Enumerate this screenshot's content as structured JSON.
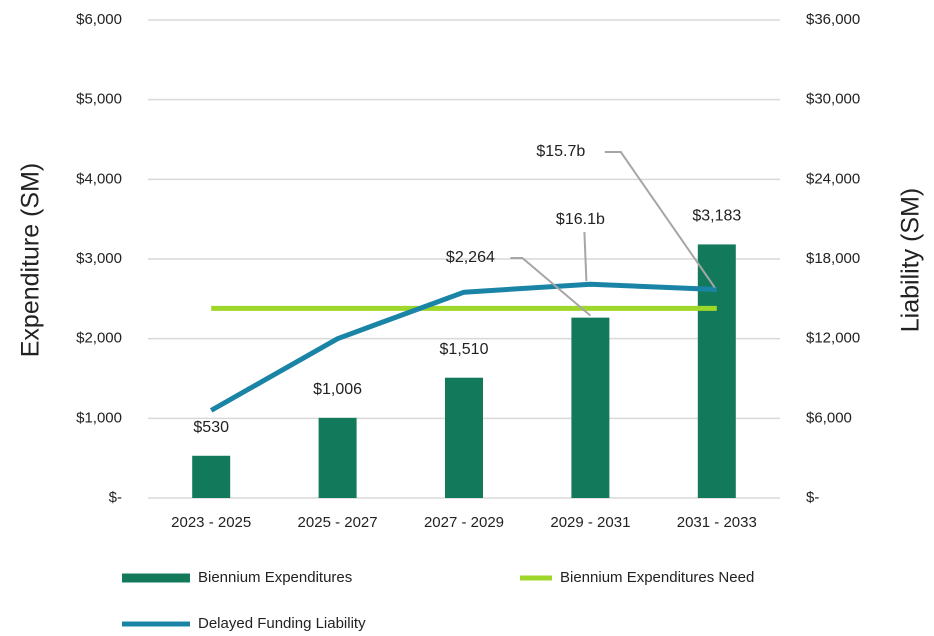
{
  "chart_data": {
    "type": "bar",
    "categories": [
      "2023 - 2025",
      "2025 - 2027",
      "2027 - 2029",
      "2029 - 2031",
      "2031 - 2033"
    ],
    "series": [
      {
        "name": "Biennium Expenditures",
        "type": "bar",
        "color": "#127a5b",
        "values": [
          530,
          1006,
          1510,
          2264,
          3183
        ],
        "value_labels": [
          "$530",
          "$1,006",
          "$1,510",
          "$2,264",
          "$3,183"
        ]
      },
      {
        "name": "Biennium Expenditures Need",
        "type": "line",
        "color": "#9fd62a",
        "values": [
          2380,
          2380,
          2380,
          2380,
          2380
        ]
      },
      {
        "name": "Delayed Funding Liability",
        "type": "line",
        "axis": "y2",
        "color": "#1a84a6",
        "values": [
          6600,
          12000,
          15500,
          16100,
          15700
        ],
        "value_labels": [
          null,
          null,
          null,
          "$16.1b",
          "$15.7b"
        ]
      }
    ],
    "ylabel": "Expenditure (SM)",
    "y2label": "Liability (SM)",
    "ylim": [
      0,
      6000
    ],
    "yticks": [
      {
        "value": 0,
        "label": "$-"
      },
      {
        "value": 1000,
        "label": "$1,000"
      },
      {
        "value": 2000,
        "label": "$2,000"
      },
      {
        "value": 3000,
        "label": "$3,000"
      },
      {
        "value": 4000,
        "label": "$4,000"
      },
      {
        "value": 5000,
        "label": "$5,000"
      },
      {
        "value": 6000,
        "label": "$6,000"
      }
    ],
    "y2lim": [
      0,
      36000
    ],
    "y2ticks": [
      {
        "value": 0,
        "label": "$-"
      },
      {
        "value": 6000,
        "label": "$6,000"
      },
      {
        "value": 12000,
        "label": "$12,000"
      },
      {
        "value": 18000,
        "label": "$18,000"
      },
      {
        "value": 24000,
        "label": "$24,000"
      },
      {
        "value": 30000,
        "label": "$30,000"
      },
      {
        "value": 36000,
        "label": "$36,000"
      }
    ],
    "grid": true,
    "legend": "bottom"
  }
}
